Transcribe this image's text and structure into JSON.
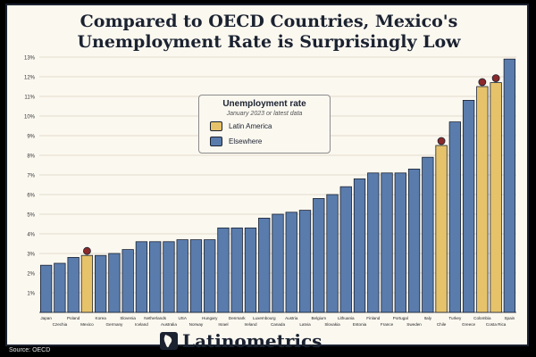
{
  "title_line1": "Compared to OECD Countries, Mexico's",
  "title_line2": "Unemployment Rate is Surprisingly Low",
  "legend": {
    "title": "Unemployment rate",
    "subtitle": "January 2023 or latest data",
    "items": [
      {
        "label": "Latin America",
        "color": "#e6c36a"
      },
      {
        "label": "Elsewhere",
        "color": "#5a7cad"
      }
    ]
  },
  "brand": "Latinometrics",
  "source": "Source: OECD",
  "colors": {
    "latin_america": "#e6c36a",
    "elsewhere": "#5a7cad",
    "outline": "#1b2230",
    "background": "#fbf8f0",
    "grid": "#e3dccb"
  },
  "chart_data": {
    "type": "bar",
    "title": "Compared to OECD Countries, Mexico's Unemployment Rate is Surprisingly Low",
    "ylim": [
      0,
      13
    ],
    "yticks": [
      "1%",
      "2%",
      "3%",
      "4%",
      "5%",
      "6%",
      "7%",
      "8%",
      "9%",
      "10%",
      "11%",
      "12%",
      "13%"
    ],
    "grid": true,
    "legend_position": "top-center",
    "categories": [
      "Japan",
      "Czechia",
      "Poland",
      "Mexico",
      "Korea",
      "Germany",
      "Slovenia",
      "Iceland",
      "Netherlands",
      "Australia",
      "USA",
      "Norway",
      "Hungary",
      "Israel",
      "Denmark",
      "Ireland",
      "Luxembourg",
      "Canada",
      "Austria",
      "Latvia",
      "Belgium",
      "Slovakia",
      "Lithuania",
      "Estonia",
      "Finland",
      "France",
      "Portugal",
      "Sweden",
      "Italy",
      "Chile",
      "Turkey",
      "Greece",
      "Colombia",
      "Costa Rica",
      "Spain"
    ],
    "values": [
      2.4,
      2.5,
      2.8,
      2.9,
      2.9,
      3.0,
      3.2,
      3.6,
      3.6,
      3.6,
      3.7,
      3.7,
      3.7,
      4.3,
      4.3,
      4.3,
      4.8,
      5.0,
      5.1,
      5.2,
      5.8,
      6.0,
      6.4,
      6.8,
      7.1,
      7.1,
      7.1,
      7.3,
      7.9,
      8.5,
      9.7,
      10.8,
      11.5,
      11.7,
      12.9
    ],
    "region": [
      "Elsewhere",
      "Elsewhere",
      "Elsewhere",
      "Latin America",
      "Elsewhere",
      "Elsewhere",
      "Elsewhere",
      "Elsewhere",
      "Elsewhere",
      "Elsewhere",
      "Elsewhere",
      "Elsewhere",
      "Elsewhere",
      "Elsewhere",
      "Elsewhere",
      "Elsewhere",
      "Elsewhere",
      "Elsewhere",
      "Elsewhere",
      "Elsewhere",
      "Elsewhere",
      "Elsewhere",
      "Elsewhere",
      "Elsewhere",
      "Elsewhere",
      "Elsewhere",
      "Elsewhere",
      "Elsewhere",
      "Elsewhere",
      "Latin America",
      "Elsewhere",
      "Elsewhere",
      "Latin America",
      "Latin America",
      "Elsewhere"
    ],
    "flag_markers": [
      "Mexico",
      "Chile",
      "Colombia",
      "Costa Rica"
    ]
  }
}
